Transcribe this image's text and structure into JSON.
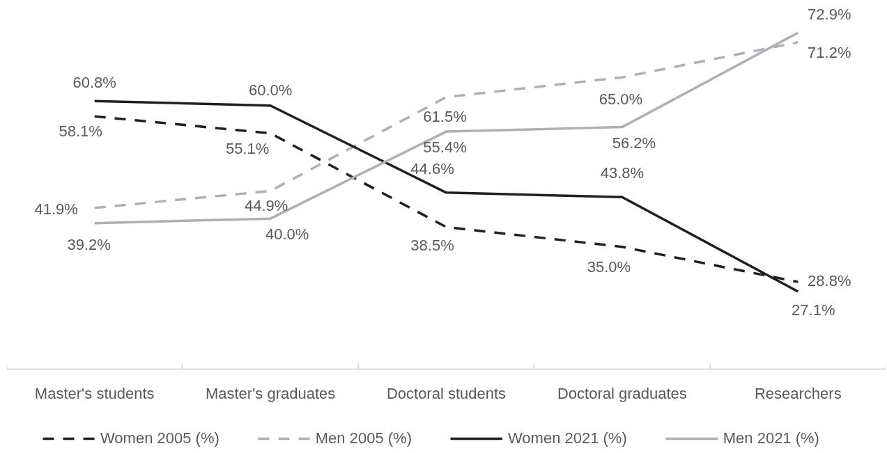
{
  "chart_data": {
    "type": "line",
    "categories": [
      "Master's students",
      "Master's graduates",
      "Doctoral students",
      "Doctoral graduates",
      "Researchers"
    ],
    "series": [
      {
        "name": "Women 2005 (%)",
        "color": "#231f20",
        "line_style": "dashed",
        "values": [
          58.1,
          55.1,
          38.5,
          35.0,
          28.8
        ],
        "value_labels": [
          "58.1%",
          "55.1%",
          "38.5%",
          "35.0%",
          "28.8%"
        ]
      },
      {
        "name": "Men 2005 (%)",
        "color": "#b0b0b4",
        "line_style": "dashed",
        "values": [
          41.9,
          44.9,
          61.5,
          65.0,
          71.2
        ],
        "value_labels": [
          "41.9%",
          "44.9%",
          "61.5%",
          "65.0%",
          "71.2%"
        ]
      },
      {
        "name": "Women 2021 (%)",
        "color": "#231f20",
        "line_style": "solid",
        "values": [
          60.8,
          60.0,
          44.6,
          43.8,
          27.1
        ],
        "value_labels": [
          "60.8%",
          "60.0%",
          "44.6%",
          "43.8%",
          "27.1%"
        ]
      },
      {
        "name": "Men 2021 (%)",
        "color": "#b0b0b4",
        "line_style": "solid",
        "values": [
          39.2,
          40.0,
          55.4,
          56.2,
          72.9
        ],
        "value_labels": [
          "39.2%",
          "40.0%",
          "55.4%",
          "56.2%",
          "72.9%"
        ]
      }
    ],
    "tick_labels": "x",
    "grid": false,
    "legend": "bottom"
  }
}
